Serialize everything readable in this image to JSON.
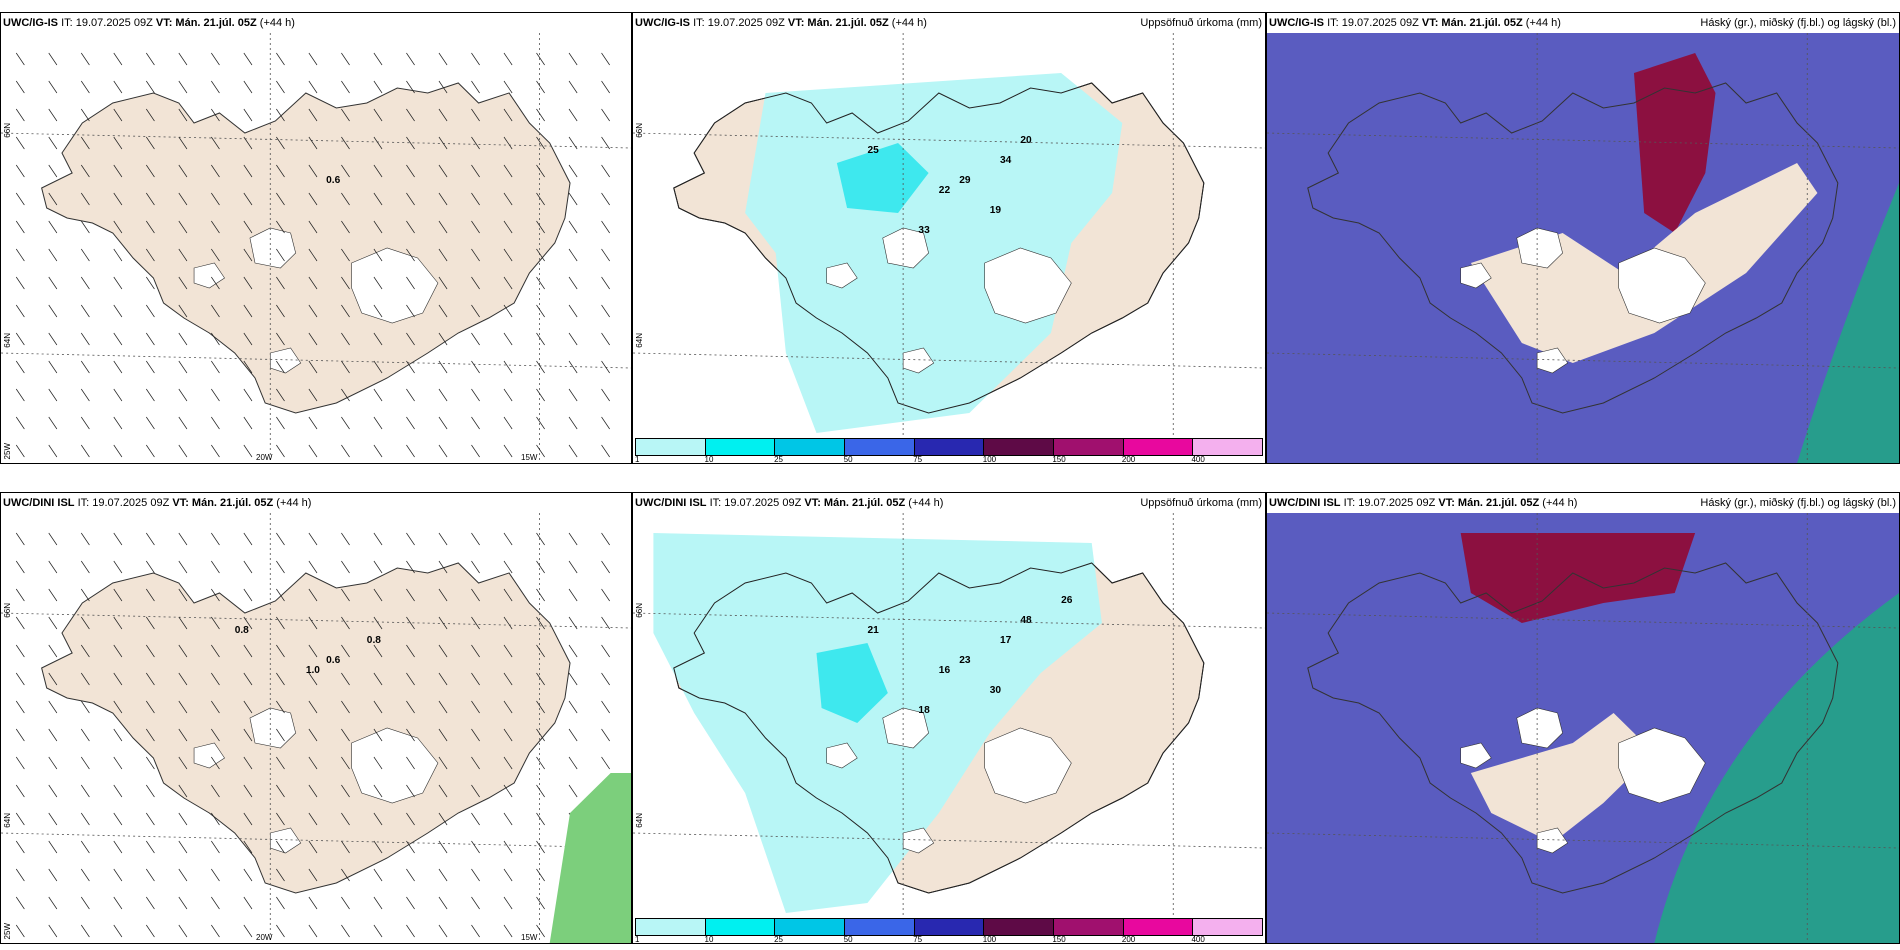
{
  "panels": [
    {
      "model": "UWC/IG-IS",
      "it": "IT: 19.07.2025 09Z",
      "vt_label": "VT:",
      "vt": "Mán. 21.júl. 05Z",
      "lead": "(+44 h)",
      "right": "",
      "kind": "wind",
      "markers": [
        "0.6"
      ]
    },
    {
      "model": "UWC/IG-IS",
      "it": "IT: 19.07.2025 09Z",
      "vt_label": "VT:",
      "vt": "Mán. 21.júl. 05Z",
      "lead": "(+44 h)",
      "right": "Uppsöfnuð úrkoma (mm)",
      "kind": "precip",
      "markers": [
        "29",
        "25",
        "34",
        "22",
        "33",
        "19",
        "20"
      ]
    },
    {
      "model": "UWC/IG-IS",
      "it": "IT: 19.07.2025 09Z",
      "vt_label": "VT:",
      "vt": "Mán. 21.júl. 05Z",
      "lead": "(+44 h)",
      "right": "Háský (gr.), miðský (fj.bl.) og lágský (bl.)",
      "kind": "cloud",
      "markers": []
    },
    {
      "model": "UWC/DINI ISL",
      "it": "IT: 19.07.2025 09Z",
      "vt_label": "VT:",
      "vt": "Mán. 21.júl. 05Z",
      "lead": "(+44 h)",
      "right": "",
      "kind": "wind",
      "markers": [
        "0.6",
        "0.8",
        "0.8",
        "1.0"
      ]
    },
    {
      "model": "UWC/DINI ISL",
      "it": "IT: 19.07.2025 09Z",
      "vt_label": "VT:",
      "vt": "Mán. 21.júl. 05Z",
      "lead": "(+44 h)",
      "right": "Uppsöfnuð úrkoma (mm)",
      "kind": "precip",
      "markers": [
        "23",
        "21",
        "17",
        "16",
        "18",
        "30",
        "48",
        "26"
      ]
    },
    {
      "model": "UWC/DINI ISL",
      "it": "IT: 19.07.2025 09Z",
      "vt_label": "VT:",
      "vt": "Mán. 21.júl. 05Z",
      "lead": "(+44 h)",
      "right": "Háský (gr.), miðský (fj.bl.) og lágský (bl.)",
      "kind": "cloud",
      "markers": []
    }
  ],
  "axes": {
    "lat_top": "66N",
    "lat_mid": "64N",
    "lon_left": "25W",
    "lon_mid": "20W",
    "lon_right": "15W"
  },
  "colorbar": {
    "ticks": [
      "1",
      "10",
      "25",
      "50",
      "75",
      "100",
      "150",
      "200",
      "400"
    ],
    "colors": [
      "#b8f6f6",
      "#00f0f0",
      "#00c6e6",
      "#3a66e8",
      "#2828b0",
      "#5e0a46",
      "#a0106e",
      "#e8089e",
      "#f4b0ee"
    ]
  },
  "colors": {
    "land": "#f2e4d6",
    "cloud_dark": "#5a5cc0",
    "hi_cloud": "#8c1040",
    "mid_cloud": "#1fa882",
    "precip_light": "#b8f6f6",
    "precip_mid": "#3ee8ee"
  }
}
